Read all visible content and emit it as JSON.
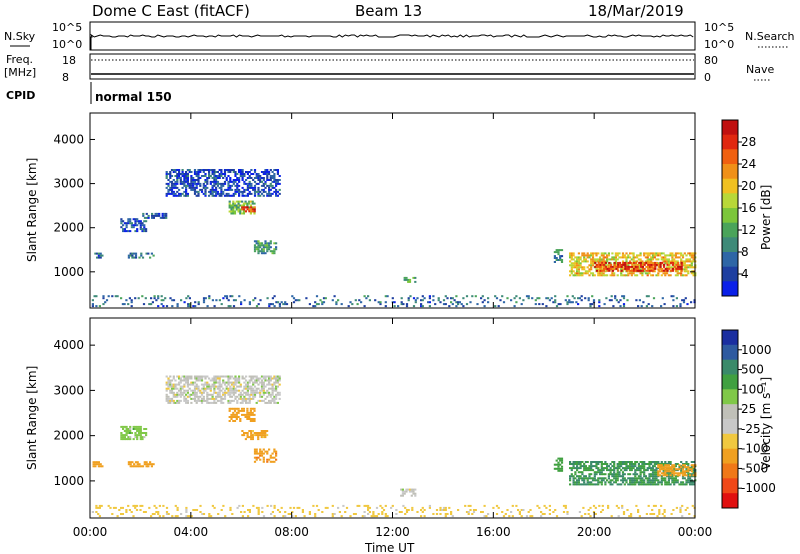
{
  "header": {
    "station": "Dome C East (fitACF)",
    "beam": "Beam 13",
    "date": "18/Mar/2019"
  },
  "top_panels": {
    "nsky_label": "N.Sky",
    "nsky_ticks": [
      "10^5",
      "10^0"
    ],
    "nsearch_label": "N.Search",
    "nsearch_ticks": [
      "10^5",
      "10^0"
    ],
    "freq_label_1": "Freq.",
    "freq_label_2": "[MHz]",
    "freq_ticks": [
      "18",
      "8"
    ],
    "nave_label": "Nave",
    "nave_ticks": [
      "80",
      "0"
    ],
    "cpid_label": "CPID",
    "cpid_value": "normal 150"
  },
  "colors": {
    "power_scale": [
      "#0a20e8",
      "#1e3fa0",
      "#2e66a6",
      "#3e8a78",
      "#4aa45a",
      "#7cc63a",
      "#b8d838",
      "#f0c020",
      "#f09018",
      "#f06010",
      "#e02810",
      "#c01010"
    ],
    "velocity_scale": [
      "#e01010",
      "#f04818",
      "#f07818",
      "#f0a020",
      "#f0c840",
      "#c8c8c8",
      "#c0c0b8",
      "#80c848",
      "#40a040",
      "#3a8a6a",
      "#2e5aa0",
      "#1a2ea0"
    ]
  },
  "chart_data": [
    {
      "type": "heatmap",
      "name": "power",
      "title": "",
      "xlabel": "",
      "ylabel": "Slant Range [km]",
      "xlim": [
        "00:00",
        "24:00"
      ],
      "ylim": [
        180,
        4600
      ],
      "yticks": [
        1000,
        2000,
        3000,
        4000
      ],
      "colorbar": {
        "label": "Power [dB]",
        "range": [
          0,
          32
        ],
        "ticks": [
          "4",
          "8",
          "12",
          "16",
          "20",
          "24",
          "28"
        ]
      },
      "echo_regions": [
        {
          "t": [
            0.1,
            0.5
          ],
          "range": [
            1300,
            1400
          ],
          "level": 6
        },
        {
          "t": [
            1.5,
            2.5
          ],
          "range": [
            1300,
            1400
          ],
          "level": 8
        },
        {
          "t": [
            1.2,
            2.2
          ],
          "range": [
            1900,
            2200
          ],
          "level": 4
        },
        {
          "t": [
            2.0,
            3.0
          ],
          "range": [
            2200,
            2300
          ],
          "level": 5
        },
        {
          "t": [
            3.0,
            7.5
          ],
          "range": [
            2700,
            3300
          ],
          "level": 3
        },
        {
          "t": [
            5.5,
            6.5
          ],
          "range": [
            2300,
            2600
          ],
          "level": 14
        },
        {
          "t": [
            6.0,
            6.5
          ],
          "range": [
            2350,
            2450
          ],
          "level": 28
        },
        {
          "t": [
            6.5,
            7.4
          ],
          "range": [
            1400,
            1700
          ],
          "level": 10
        },
        {
          "t": [
            12.3,
            12.9
          ],
          "range": [
            750,
            850
          ],
          "level": 10
        },
        {
          "t": [
            18.4,
            18.7
          ],
          "range": [
            1200,
            1500
          ],
          "level": 8
        },
        {
          "t": [
            19.0,
            24.0
          ],
          "range": [
            900,
            1400
          ],
          "level": 20
        },
        {
          "t": [
            20.0,
            23.5
          ],
          "range": [
            1000,
            1200
          ],
          "level": 28
        },
        {
          "t": [
            0.0,
            24.0
          ],
          "range": [
            200,
            450
          ],
          "level": 6
        }
      ]
    },
    {
      "type": "heatmap",
      "name": "velocity",
      "title": "",
      "xlabel": "Time UT",
      "ylabel": "Slant Range [km]",
      "xlim": [
        "00:00",
        "24:00"
      ],
      "ylim": [
        180,
        4600
      ],
      "xticks": [
        "00:00",
        "04:00",
        "08:00",
        "12:00",
        "16:00",
        "20:00",
        "00:00"
      ],
      "yticks": [
        1000,
        2000,
        3000,
        4000
      ],
      "colorbar": {
        "label": "Velocity [m s⁻¹]",
        "ticks": [
          "-1000",
          "-500",
          "-100",
          "-25",
          "25",
          "100",
          "500",
          "1000"
        ]
      },
      "echo_regions": [
        {
          "t": [
            0.1,
            0.5
          ],
          "range": [
            1300,
            1400
          ],
          "velocity": -300
        },
        {
          "t": [
            1.5,
            2.5
          ],
          "range": [
            1300,
            1400
          ],
          "velocity": -200
        },
        {
          "t": [
            1.2,
            2.2
          ],
          "range": [
            1900,
            2200
          ],
          "velocity": 60
        },
        {
          "t": [
            3.0,
            7.5
          ],
          "range": [
            2700,
            3300
          ],
          "velocity": 0
        },
        {
          "t": [
            5.5,
            6.5
          ],
          "range": [
            2300,
            2600
          ],
          "velocity": -200
        },
        {
          "t": [
            6.0,
            7.0
          ],
          "range": [
            1900,
            2100
          ],
          "velocity": -150
        },
        {
          "t": [
            6.5,
            7.4
          ],
          "range": [
            1400,
            1700
          ],
          "velocity": -400
        },
        {
          "t": [
            12.3,
            12.9
          ],
          "range": [
            650,
            800
          ],
          "velocity": 0
        },
        {
          "t": [
            18.4,
            18.7
          ],
          "range": [
            1200,
            1500
          ],
          "velocity": 300
        },
        {
          "t": [
            19.0,
            24.0
          ],
          "range": [
            900,
            1400
          ],
          "velocity": 500
        },
        {
          "t": [
            22.5,
            24.0
          ],
          "range": [
            1100,
            1350
          ],
          "velocity": -300
        },
        {
          "t": [
            0.0,
            24.0
          ],
          "range": [
            200,
            450
          ],
          "velocity": -50
        }
      ]
    }
  ]
}
